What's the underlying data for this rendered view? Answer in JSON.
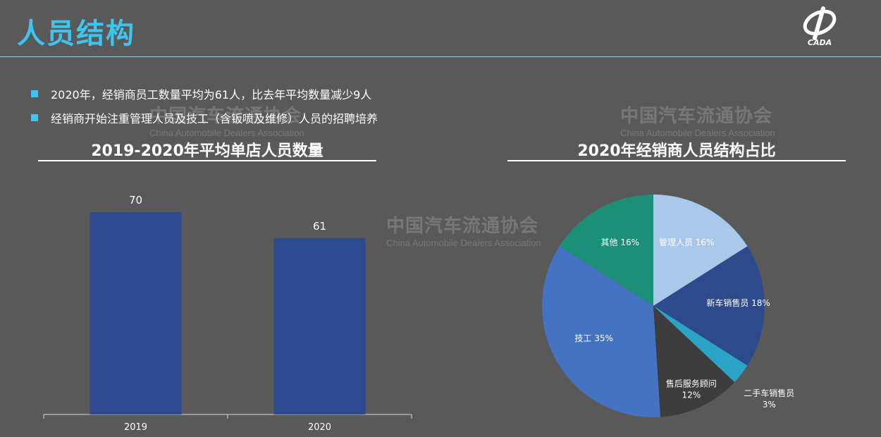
{
  "page": {
    "title": "人员结构",
    "bullets": [
      "2020年，经销商员工数量平均为61人，比去年平均数量减少9人",
      "经销商开始注重管理人员及技工（含钣喷及维修）人员的招聘培养"
    ],
    "logo_text": "CADA",
    "watermark": {
      "cn": "中国汽车流通协会",
      "en": "China Automobile Dealers Association"
    }
  },
  "colors": {
    "background": "#595959",
    "accent": "#3fc4ef",
    "bar": "#2e4a8f"
  },
  "chart_data": [
    {
      "type": "bar",
      "title": "2019-2020年平均单店人员数量",
      "categories": [
        "2019",
        "2020"
      ],
      "values": [
        70,
        61
      ],
      "ylim": [
        0,
        80
      ],
      "grid": false,
      "legend": "none",
      "color": "#2e4a8f"
    },
    {
      "type": "pie",
      "title": "2020年经销商人员结构占比",
      "slices": [
        {
          "label": "管理人员",
          "value": 16,
          "display": "管理人员 16%",
          "color": "#a9c8ea"
        },
        {
          "label": "新车销售员",
          "value": 18,
          "display": "新车销售员 18%",
          "color": "#2d4a8c"
        },
        {
          "label": "二手车销售员",
          "value": 3,
          "display": "3%",
          "color": "#2ba3c6"
        },
        {
          "label": "售后服务顾问",
          "value": 12,
          "display": "12%",
          "color": "#3d3d3d"
        },
        {
          "label": "技工",
          "value": 35,
          "display": "技工 35%",
          "color": "#4573c4"
        },
        {
          "label": "其他",
          "value": 16,
          "display": "其他 16%",
          "color": "#1e8f77"
        }
      ],
      "legend": "none"
    }
  ]
}
